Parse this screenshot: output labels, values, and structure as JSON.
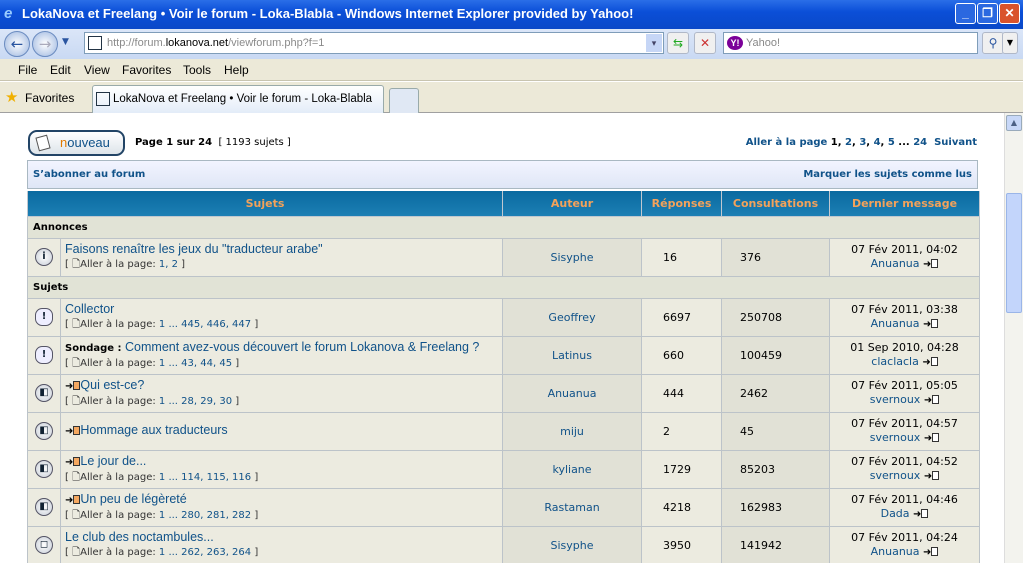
{
  "window": {
    "title": "LokaNova et Freelang • Voir le forum - Loka-Blabla - Windows Internet Explorer provided by Yahoo!"
  },
  "address": {
    "scheme": "http://forum.",
    "host": "lokanova.net",
    "path": "/viewforum.php?f=1",
    "search_placeholder": "Yahoo!"
  },
  "menu": [
    "File",
    "Edit",
    "View",
    "Favorites",
    "Tools",
    "Help"
  ],
  "favorites": {
    "label": "Favorites",
    "tab_title": "LokaNova et Freelang • Voir le forum - Loka-Blabla"
  },
  "forum": {
    "new_button_first": "n",
    "new_button_rest": "ouveau",
    "page_info": "Page 1 sur 24",
    "topic_count": "[ 1193 sujets ]",
    "pagination": {
      "prefix": "Aller à la page",
      "current": "1",
      "pages": [
        "2",
        "3",
        "4",
        "5"
      ],
      "ellipsis": "...",
      "last": "24",
      "next": "Suivant"
    },
    "subscribe": "S’abonner au forum",
    "mark_read": "Marquer les sujets comme lus",
    "columns": [
      "Sujets",
      "Auteur",
      "Réponses",
      "Consultations",
      "Dernier message"
    ],
    "goto_label": "Aller à la page:",
    "sections": [
      {
        "label": "Annonces",
        "rows": [
          {
            "icon": "announcement",
            "title": "Faisons renaître les jeux du \"traducteur arabe\"",
            "pages": "1, 2",
            "author": "Sisyphe",
            "replies": "16",
            "views": "376",
            "date": "07 Fév 2011, 04:02",
            "last_author": "Anuanua"
          }
        ]
      },
      {
        "label": "Sujets",
        "rows": [
          {
            "icon": "sticky",
            "title": "Collector",
            "pages": "1 ... 445, 446, 447",
            "author": "Geoffrey",
            "replies": "6697",
            "views": "250708",
            "date": "07 Fév 2011, 03:38",
            "last_author": "Anuanua"
          },
          {
            "icon": "sticky",
            "prefix": "Sondage :",
            "title": "Comment avez-vous découvert le forum Lokanova & Freelang ?",
            "pages": "1 ... 43, 44, 45",
            "author": "Latinus",
            "replies": "660",
            "views": "100459",
            "date": "01 Sep 2010, 04:28",
            "last_author": "claclacla"
          },
          {
            "icon": "topic-unread",
            "new": true,
            "title": "Qui est-ce?",
            "pages": "1 ... 28, 29, 30",
            "author": "Anuanua",
            "replies": "444",
            "views": "2462",
            "date": "07 Fév 2011, 05:05",
            "last_author": "svernoux"
          },
          {
            "icon": "topic-unread",
            "new": true,
            "title": "Hommage aux traducteurs",
            "author": "miju",
            "replies": "2",
            "views": "45",
            "date": "07 Fév 2011, 04:57",
            "last_author": "svernoux"
          },
          {
            "icon": "topic-unread",
            "new": true,
            "title": "Le jour de...",
            "pages": "1 ... 114, 115, 116",
            "author": "kyliane",
            "replies": "1729",
            "views": "85203",
            "date": "07 Fév 2011, 04:52",
            "last_author": "svernoux"
          },
          {
            "icon": "topic-unread",
            "new": true,
            "title": "Un peu de légèreté",
            "pages": "1 ... 280, 281, 282",
            "author": "Rastaman",
            "replies": "4218",
            "views": "162983",
            "date": "07 Fév 2011, 04:46",
            "last_author": "Dada"
          },
          {
            "icon": "topic-read",
            "title": "Le club des noctambules...",
            "pages": "1 ... 262, 263, 264",
            "author": "Sisyphe",
            "replies": "3950",
            "views": "141942",
            "date": "07 Fév 2011, 04:24",
            "last_author": "Anuanua"
          }
        ]
      }
    ]
  }
}
